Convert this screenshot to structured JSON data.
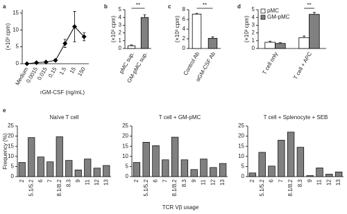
{
  "chart_data": [
    {
      "type": "line",
      "panel": "a",
      "xlabel": "rGM-CSF (ng/mL)",
      "ylabel": "(×10³ cpm)",
      "categories": [
        "Medium",
        "0.0015",
        "0.015",
        "0.15",
        "1.5",
        "15",
        "150"
      ],
      "values": [
        0,
        0.3,
        0.5,
        1,
        6,
        11,
        8
      ],
      "errors": [
        0,
        0.2,
        0.2,
        0.3,
        1.2,
        4.5,
        1.2
      ],
      "color": "#000000",
      "ylim": [
        0,
        16
      ],
      "yticks": [
        0,
        5,
        10,
        15
      ]
    },
    {
      "type": "bar",
      "panel": "b",
      "ylabel": "(×10³ cpm)",
      "categories": [
        "pMC sup.",
        "GM-pMC sup."
      ],
      "values": [
        0.35,
        4.0
      ],
      "errors": [
        0.1,
        0.35
      ],
      "colors": [
        "#ffffff",
        "#808080"
      ],
      "ylim": [
        0,
        5
      ],
      "yticks": [
        0,
        1,
        2,
        3,
        4,
        5
      ],
      "annotation": "**"
    },
    {
      "type": "bar",
      "panel": "c",
      "ylabel": "(×10³ cpm)",
      "categories": [
        "Control Ab",
        "αGM-CSF Ab"
      ],
      "values": [
        7.1,
        2.1
      ],
      "errors": [
        0.15,
        0.3
      ],
      "colors": [
        "#ffffff",
        "#808080"
      ],
      "ylim": [
        0,
        8
      ],
      "yticks": [
        0,
        2,
        4,
        6,
        8
      ],
      "annotation": "**"
    },
    {
      "type": "grouped-bar",
      "panel": "d",
      "ylabel": "(×10² cpm)",
      "categories": [
        "T cell only",
        "T cell + APC"
      ],
      "series": [
        {
          "name": "pMC",
          "color": "#ffffff",
          "values": [
            0.8,
            1.4
          ],
          "errors": [
            0.15,
            0.2
          ]
        },
        {
          "name": "GM-pMC",
          "color": "#808080",
          "values": [
            0.65,
            4.4
          ],
          "errors": [
            0.1,
            0.25
          ]
        }
      ],
      "ylim": [
        0,
        5
      ],
      "yticks": [
        0,
        1,
        2,
        3,
        4,
        5
      ],
      "annotation": "**",
      "legend": "upper left"
    },
    {
      "type": "bar-panels",
      "panel": "e",
      "ylabel": "Frequency (%)",
      "xlabel": "TCR Vβ usage",
      "categories": [
        "2",
        "5.1/5.2",
        "6",
        "7",
        "8.1/8.2",
        "8.3",
        "9",
        "11",
        "12",
        "13"
      ],
      "color": "#808080",
      "ylim": [
        0,
        25
      ],
      "yticks": [
        0,
        5,
        10,
        15,
        20,
        25
      ],
      "panels": [
        {
          "title": "Naïve T cell",
          "values": [
            7,
            19.3,
            9.7,
            7.3,
            19.7,
            8,
            3.3,
            8.7,
            4.2,
            5.5
          ]
        },
        {
          "title": "T cell + GM-pMC",
          "values": [
            7,
            17,
            15.3,
            8.3,
            19.5,
            8.3,
            3.5,
            8.7,
            4.5,
            6.5
          ]
        },
        {
          "title": "T cell + Splenocyte + SEB",
          "values": [
            1.8,
            12,
            5.2,
            18,
            22,
            14.5,
            0.5,
            4.3,
            1.2,
            2.3
          ]
        }
      ]
    }
  ]
}
